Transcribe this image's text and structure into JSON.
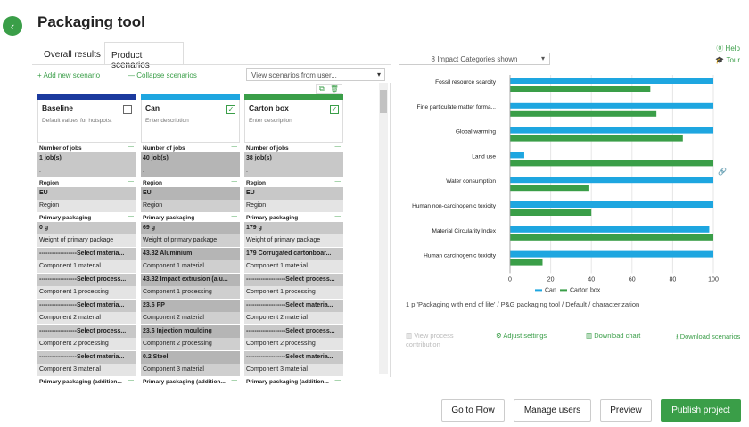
{
  "page": {
    "title": "Packaging tool",
    "back_icon": "‹"
  },
  "tabs": [
    "Overall results",
    "Product scenarios"
  ],
  "toolbar": {
    "add_label": "Add new scenario",
    "collapse_label": "Collapse scenarios",
    "view_placeholder": "View scenarios from user...",
    "plus_icon": "+",
    "minus_icon": "—",
    "caret_icon": "▾"
  },
  "right_top": {
    "impact_dropdown": "8 Impact Categories shown",
    "help": "Help",
    "tour": "Tour",
    "help_icon": "⓪",
    "tour_icon": "🎓"
  },
  "scenarios": [
    {
      "name": "Baseline",
      "desc": "Default values for hotspots.",
      "color": "#1b3a9e",
      "checked": false,
      "check_mark": "",
      "jobs_label": "Number of jobs",
      "jobs_val": "1 job(s)",
      "jobs_sub": ".",
      "region_label": "Region",
      "region_val": "EU",
      "region_sub": "Region",
      "pp_label": "Primary packaging",
      "pp_val": "0 g",
      "pp_sub": "Weight of primary package",
      "rows": [
        [
          "------------------Select materia...",
          "Component 1 material"
        ],
        [
          "------------------Select process...",
          "Component 1 processing"
        ],
        [
          "------------------Select materia...",
          "Component 2 material"
        ],
        [
          "------------------Select process...",
          "Component 2 processing"
        ],
        [
          "------------------Select materia...",
          "Component 3 material"
        ]
      ],
      "footer_label": "Primary packaging (addition..."
    },
    {
      "name": "Can",
      "desc": "Enter description",
      "color": "#1ea6e0",
      "checked": true,
      "check_mark": "✓",
      "jobs_label": "Number of jobs",
      "jobs_val": "40 job(s)",
      "jobs_sub": ".",
      "region_label": "Region",
      "region_val": "EU",
      "region_sub": "Region",
      "pp_label": "Primary packaging",
      "pp_val": "69 g",
      "pp_sub": "Weight of primary package",
      "rows": [
        [
          "43.32 Aluminium",
          "Component 1 material"
        ],
        [
          "43.32 Impact extrusion (alu...",
          "Component 1 processing"
        ],
        [
          "23.6 PP",
          "Component 2 material"
        ],
        [
          "23.6 Injection moulding",
          "Component 2 processing"
        ],
        [
          "0.2 Steel",
          "Component 3 material"
        ]
      ],
      "footer_label": "Primary packaging (addition..."
    },
    {
      "name": "Carton box",
      "desc": "Enter description",
      "color": "#3a9e48",
      "checked": true,
      "check_mark": "✓",
      "jobs_label": "Number of jobs",
      "jobs_val": "38 job(s)",
      "jobs_sub": ".",
      "region_label": "Region",
      "region_val": "EU",
      "region_sub": "Region",
      "pp_label": "Primary packaging",
      "pp_val": "179 g",
      "pp_sub": "Weight of primary package",
      "rows": [
        [
          "179 Corrugated cartonboar...",
          "Component 1 material"
        ],
        [
          "-------------------Select process...",
          "Component 1 processing"
        ],
        [
          "-------------------Select materia...",
          "Component 2 material"
        ],
        [
          "-------------------Select process...",
          "Component 2 processing"
        ],
        [
          "-------------------Select materia...",
          "Component 3 material"
        ]
      ],
      "footer_label": "Primary packaging (addition..."
    }
  ],
  "card_icons": {
    "copy": "⧉",
    "delete": "🗑"
  },
  "chart_data": {
    "type": "bar",
    "orientation": "horizontal",
    "categories": [
      "Fossil resource scarcity",
      "Fine particulate matter forma...",
      "Global warming",
      "Land use",
      "Water consumption",
      "Human non-carcinogenic toxicity",
      "Material Circularity Index",
      "Human carcinogenic toxicity"
    ],
    "series": [
      {
        "name": "Can",
        "color": "#1ea6e0",
        "values": [
          100,
          100,
          100,
          7,
          100,
          100,
          98,
          100
        ]
      },
      {
        "name": "Carton box",
        "color": "#3a9e48",
        "values": [
          69,
          72,
          85,
          100,
          39,
          40,
          100,
          16
        ]
      }
    ],
    "xlim": [
      0,
      100
    ],
    "xticks": [
      "0",
      "20",
      "40",
      "60",
      "80",
      "100"
    ],
    "legend_position": "bottom"
  },
  "chart_footnote": "1 p 'Packaging with end of life' / P&G packaging tool / Default / characterization",
  "chart_actions": {
    "view_contribution": "View process contribution",
    "adjust": "Adjust settings",
    "download_chart": "Download chart",
    "download_scenarios": "Download scenarios"
  },
  "chart_side_icon": "🔗",
  "footer_buttons": {
    "flow": "Go to Flow",
    "users": "Manage users",
    "preview": "Preview",
    "publish": "Publish project"
  }
}
